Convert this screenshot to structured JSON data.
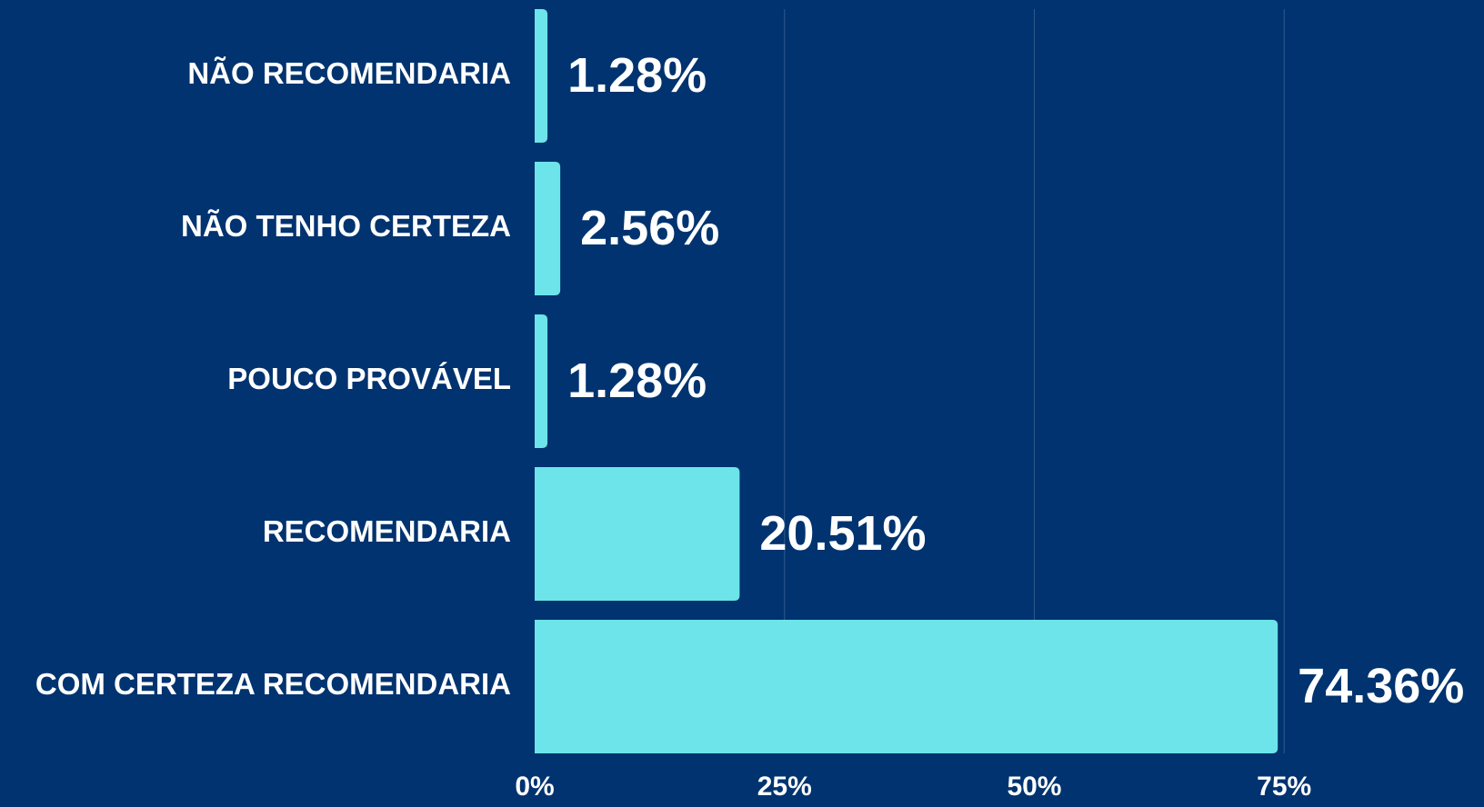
{
  "chart_data": {
    "type": "hbar",
    "categories": [
      "NÃO RECOMENDARIA",
      "NÃO TENHO CERTEZA",
      "POUCO PROVÁVEL",
      "RECOMENDARIA",
      "COM CERTEZA RECOMENDARIA"
    ],
    "values": [
      1.28,
      2.56,
      1.28,
      20.51,
      74.36
    ],
    "value_labels": [
      "1.28%",
      "2.56%",
      "1.28%",
      "20.51%",
      "74.36%"
    ],
    "color": "#6ce4e9",
    "xlim": [
      0,
      95
    ],
    "xticks": [
      {
        "value": 0,
        "label": "0%"
      },
      {
        "value": 25,
        "label": "25%"
      },
      {
        "value": 50,
        "label": "50%"
      },
      {
        "value": 75,
        "label": "75%"
      }
    ],
    "grid": true
  }
}
